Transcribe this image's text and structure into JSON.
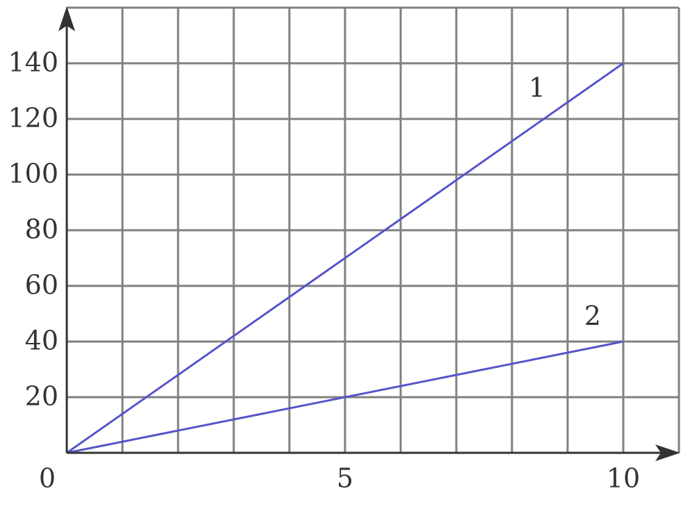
{
  "chart_data": {
    "type": "line",
    "x": [
      0,
      10
    ],
    "series": [
      {
        "name": "1",
        "color": "#5555cc",
        "values": [
          0,
          140
        ]
      },
      {
        "name": "2",
        "color": "#5555cc",
        "values": [
          0,
          40
        ]
      }
    ],
    "xlim": [
      0,
      11
    ],
    "ylim": [
      0,
      160
    ],
    "xticks": [
      0,
      5,
      10
    ],
    "yticks": [
      20,
      40,
      60,
      80,
      100,
      120,
      140
    ],
    "grid": true,
    "xgrid_step": 1,
    "ygrid_step": 20,
    "grid_color": "#808080",
    "axis_color": "#333333"
  }
}
